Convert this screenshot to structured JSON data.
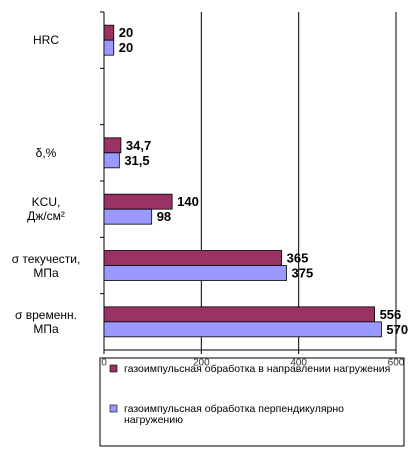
{
  "chart_data": {
    "type": "barh",
    "categories": [
      "HRC",
      null,
      "δ,%",
      "KCU,\nДж/см²",
      "σ текучести,\nМПа",
      "σ временн.\nМПа"
    ],
    "series": [
      {
        "name": "газоимпульсная обработка в направлении нагружения",
        "color": "#993366",
        "values": [
          20,
          null,
          34.7,
          140,
          365,
          556
        ],
        "value_labels": [
          "20",
          null,
          "34,7",
          "140",
          "365",
          "556"
        ]
      },
      {
        "name": "газоимпульсная обработка перпендикулярно нагружению",
        "color": "#9999ff",
        "values": [
          20,
          null,
          31.5,
          98,
          375,
          570
        ],
        "value_labels": [
          "20",
          null,
          "31,5",
          "98",
          "375",
          "570"
        ]
      }
    ],
    "xlim": [
      0,
      600
    ],
    "xticks": [
      0,
      200,
      400,
      600
    ],
    "grid": true
  }
}
